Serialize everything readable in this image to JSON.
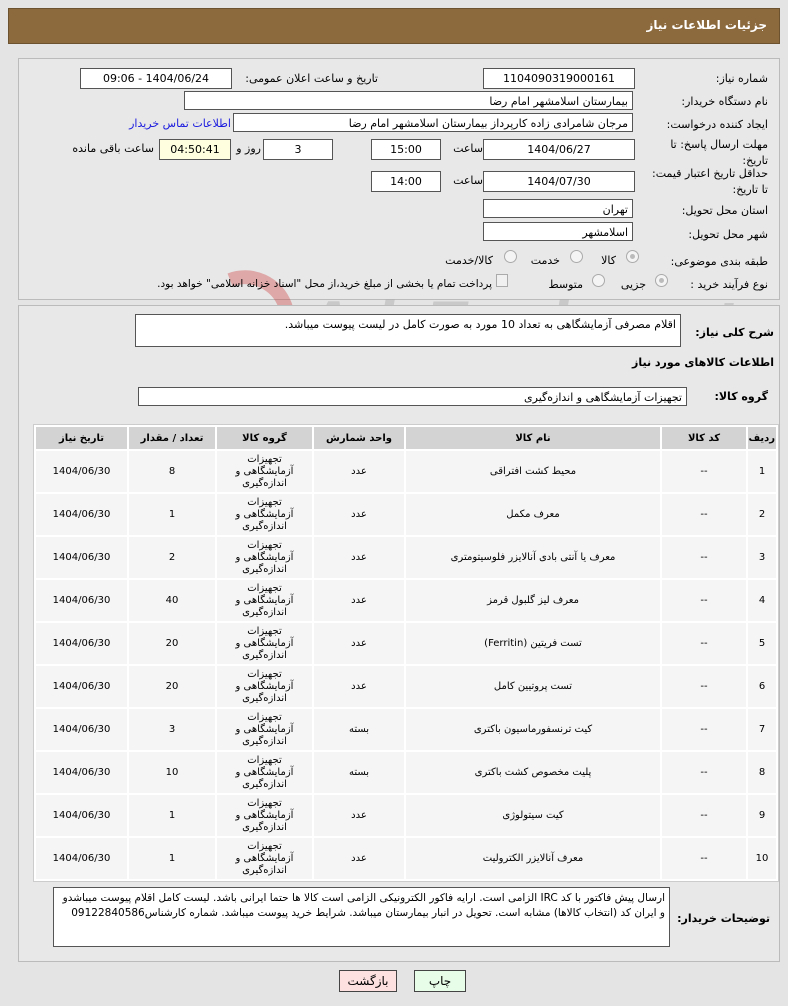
{
  "header": {
    "title": "جزئیات اطلاعات نیاز"
  },
  "form": {
    "need_number_label": "شماره نیاز:",
    "need_number": "1104090319000161",
    "announce_label": "تاریخ و ساعت اعلان عمومی:",
    "announce_value": "1404/06/24 - 09:06",
    "buyer_label": "نام دستگاه خریدار:",
    "buyer": "بیمارستان اسلامشهر   امام رضا",
    "creator_label": "ایجاد کننده درخواست:",
    "creator": "مرجان شامرادی زاده کارپرداز بیمارستان اسلامشهر   امام رضا",
    "contact_link": "اطلاعات تماس خریدار",
    "reply_label": "مهلت ارسال پاسخ: تا تاریخ:",
    "reply_date": "1404/06/27",
    "time_label": "ساعت",
    "reply_time": "15:00",
    "days": "3",
    "days_label": "روز و",
    "remaining": "04:50:41",
    "remaining_label": "ساعت باقی مانده",
    "validity_label": "حداقل تاریخ اعتبار قیمت: تا تاریخ:",
    "validity_date": "1404/07/30",
    "validity_time": "14:00",
    "province_label": "استان محل تحویل:",
    "province": "تهران",
    "city_label": "شهر محل تحویل:",
    "city": "اسلامشهر",
    "category_label": "طبقه بندی موضوعی:",
    "category_options": [
      "کالا",
      "خدمت",
      "کالا/خدمت"
    ],
    "category_selected": "کالا",
    "process_label": "نوع فرآیند خرید :",
    "process_options": [
      "جزیی",
      "متوسط"
    ],
    "process_selected": "جزیی",
    "payment_note": "پرداخت تمام یا بخشی از مبلغ خرید،از محل \"اسناد خزانه اسلامی\" خواهد بود."
  },
  "summary": {
    "label": "شرح کلی نیاز:",
    "text": "اقلام مصرفی آزمایشگاهی به تعداد 10 مورد به صورت کامل در لیست پیوست میباشد.",
    "goods_title": "اطلاعات کالاهای مورد نیاز",
    "group_label": "گروه کالا:",
    "group_value": "تجهیزات آزمایشگاهی و اندازه‌گیری"
  },
  "table": {
    "headers": [
      "ردیف",
      "کد کالا",
      "نام کالا",
      "واحد شمارش",
      "گروه کالا",
      "تعداد / مقدار",
      "تاریخ نیاز"
    ],
    "rows": [
      [
        "1",
        "--",
        "محیط کشت افتراقی",
        "عدد",
        "تجهیزات آزمایشگاهی و اندازه‌گیری",
        "8",
        "1404/06/30"
      ],
      [
        "2",
        "--",
        "معرف مکمل",
        "عدد",
        "تجهیزات آزمایشگاهی و اندازه‌گیری",
        "1",
        "1404/06/30"
      ],
      [
        "3",
        "--",
        "معرف یا آنتی بادی آنالایزر فلوسیتومتری",
        "عدد",
        "تجهیزات آزمایشگاهی و اندازه‌گیری",
        "2",
        "1404/06/30"
      ],
      [
        "4",
        "--",
        "معرف لیز گلبول قرمز",
        "عدد",
        "تجهیزات آزمایشگاهی و اندازه‌گیری",
        "40",
        "1404/06/30"
      ],
      [
        "5",
        "--",
        "تست فریتین (Ferritin)",
        "عدد",
        "تجهیزات آزمایشگاهی و اندازه‌گیری",
        "20",
        "1404/06/30"
      ],
      [
        "6",
        "--",
        "تست پروتیین کامل",
        "عدد",
        "تجهیزات آزمایشگاهی و اندازه‌گیری",
        "20",
        "1404/06/30"
      ],
      [
        "7",
        "--",
        "کیت ترنسفورماسیون باکتری",
        "بسته",
        "تجهیزات آزمایشگاهی و اندازه‌گیری",
        "3",
        "1404/06/30"
      ],
      [
        "8",
        "--",
        "پلیت مخصوص کشت باکتری",
        "بسته",
        "تجهیزات آزمایشگاهی و اندازه‌گیری",
        "10",
        "1404/06/30"
      ],
      [
        "9",
        "--",
        "کیت سیتولوژی",
        "عدد",
        "تجهیزات آزمایشگاهی و اندازه‌گیری",
        "1",
        "1404/06/30"
      ],
      [
        "10",
        "--",
        "معرف آنالایزر الکترولیت",
        "عدد",
        "تجهیزات آزمایشگاهی و اندازه‌گیری",
        "1",
        "1404/06/30"
      ]
    ]
  },
  "notes": {
    "label": "توضیحات خریدار:",
    "text": "ارسال پیش فاکتور با کد IRC الزامی است. ارایه فاکور الکترونیکی الزامی است کالا ها حتما ایرانی باشد. لیست کامل اقلام پیوست میباشدو و ایران کد (انتخاب کالاها) مشابه است. تحویل در انبار بیمارستان میباشد. شرایط خرید پیوست میباشد. شماره کارشناس09122840586"
  },
  "buttons": {
    "print": "چاپ",
    "back": "بازگشت"
  },
  "watermark": "AriaTender.net",
  "colors": {
    "header": "#8c6a3e",
    "link": "#1a1adf",
    "print_bg": "#e8fde8",
    "back_bg": "#fde0e0"
  }
}
